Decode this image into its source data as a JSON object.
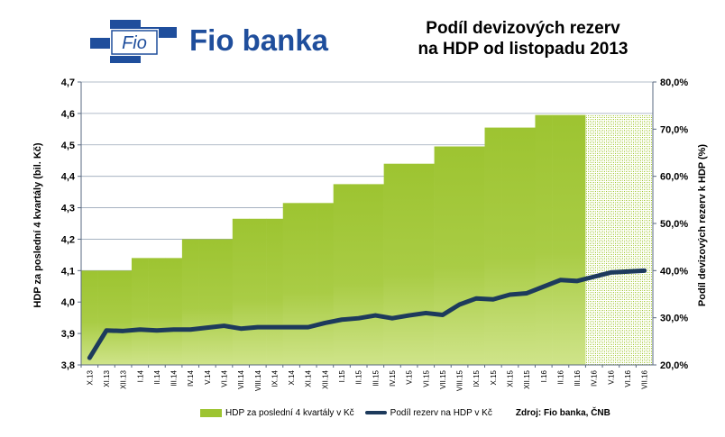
{
  "brand": {
    "logo_text": "Fio",
    "name": "Fio banka"
  },
  "title_lines": [
    "Podíl devizových rezerv",
    "na HDP od listopadu 2013"
  ],
  "source": "Zdroj: Fio banka, ČNB",
  "colors": {
    "bar": "#9dc431",
    "bar_light": "#c9e07a",
    "line": "#1d3a5c",
    "grid": "#9aa7b8",
    "brand_blue": "#1f4e9c"
  },
  "chart_data": {
    "type": "bar",
    "title": "Podíl devizových rezerv na HDP od listopadu 2013",
    "categories": [
      "X.13",
      "XI.13",
      "XII.13",
      "I.14",
      "II.14",
      "III.14",
      "IV.14",
      "V.14",
      "VI.14",
      "VII.14",
      "VIII.14",
      "IX.14",
      "X.14",
      "XI.14",
      "XII.14",
      "I.15",
      "II.15",
      "III.15",
      "IV.15",
      "V.15",
      "VI.15",
      "VII.15",
      "VIII.15",
      "IX.15",
      "X.15",
      "XI.15",
      "XII.15",
      "I.16",
      "II.16",
      "III.16",
      "IV.16",
      "V.16",
      "VI.16",
      "VII.16"
    ],
    "ylabel": "HDP za poslední 4 kvartály (bil. Kč)",
    "y2label": "Podíl devizových rezerv k HDP (%)",
    "ylim": [
      3.8,
      4.7
    ],
    "y_ticks": [
      "3,8",
      "3,9",
      "4,0",
      "4,1",
      "4,2",
      "4,3",
      "4,4",
      "4,5",
      "4,6",
      "4,7"
    ],
    "y2lim": [
      20,
      80
    ],
    "y2_ticks": [
      "20,0%",
      "30,0%",
      "40,0%",
      "50,0%",
      "60,0%",
      "70,0%",
      "80,0%"
    ],
    "grid": true,
    "legend_position": "bottom",
    "series": [
      {
        "name": "HDP za poslední 4 kvartály v Kč",
        "type": "bar",
        "axis": "left",
        "values": [
          4.1,
          4.1,
          4.1,
          4.14,
          4.14,
          4.14,
          4.2,
          4.2,
          4.2,
          4.265,
          4.265,
          4.265,
          4.315,
          4.315,
          4.315,
          4.375,
          4.375,
          4.375,
          4.44,
          4.44,
          4.44,
          4.495,
          4.495,
          4.495,
          4.555,
          4.555,
          4.555,
          4.595,
          4.595,
          4.595,
          4.595,
          4.595,
          4.595,
          4.595
        ],
        "estimated_from_index": 30
      },
      {
        "name": "Podíl rezerv na HDP v Kč",
        "type": "line",
        "axis": "right",
        "values": [
          21.5,
          27.3,
          27.2,
          27.5,
          27.3,
          27.5,
          27.5,
          27.9,
          28.3,
          27.7,
          28.0,
          28.0,
          28.0,
          28.0,
          28.9,
          29.6,
          29.9,
          30.5,
          29.9,
          30.5,
          31.0,
          30.6,
          32.8,
          34.1,
          33.9,
          34.9,
          35.2,
          36.6,
          38.0,
          37.8,
          38.7,
          39.6,
          39.8,
          40.0
        ]
      }
    ]
  }
}
